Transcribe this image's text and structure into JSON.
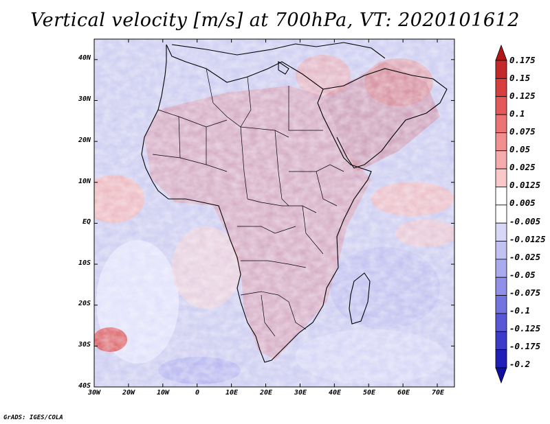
{
  "title": "Vertical velocity [m/s] at 700hPa, VT: 2020101612",
  "credit": "GrADS: IGES/COLA",
  "map": {
    "variable": "Vertical velocity",
    "units": "m/s",
    "level": "700hPa",
    "valid_time": "2020101612",
    "region": "Africa",
    "lon_range": [
      -30,
      75
    ],
    "lat_range": [
      -40,
      45
    ],
    "lat_labels": [
      "40N",
      "30N",
      "20N",
      "10N",
      "EQ",
      "10S",
      "20S",
      "30S",
      "40S"
    ],
    "lon_labels": [
      "30W",
      "20W",
      "10W",
      "0",
      "10E",
      "20E",
      "30E",
      "40E",
      "50E",
      "60E",
      "70E"
    ]
  },
  "colorbar": {
    "labels": [
      "0.175",
      "0.15",
      "0.125",
      "0.1",
      "0.075",
      "0.05",
      "0.025",
      "0.0125",
      "0.005",
      "-0.005",
      "-0.0125",
      "-0.025",
      "-0.05",
      "-0.075",
      "-0.1",
      "-0.125",
      "-0.175",
      "-0.2"
    ],
    "colors": [
      "#b01818",
      "#c52a2a",
      "#d84040",
      "#e45a5a",
      "#ec7474",
      "#f29090",
      "#f6acac",
      "#fac8c8",
      "#ffffff",
      "#ffffff",
      "#d8d8f6",
      "#c2c2f2",
      "#aaaaee",
      "#9090e8",
      "#7474e0",
      "#5858d6",
      "#3c3cc8",
      "#2020b8",
      "#1010a0"
    ]
  }
}
